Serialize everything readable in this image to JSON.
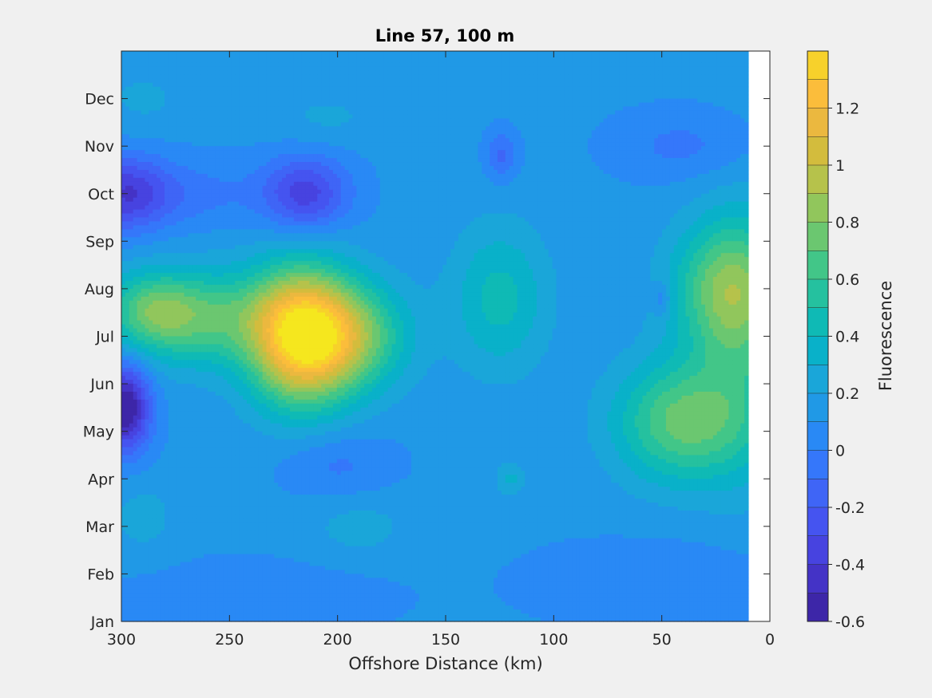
{
  "chart_data": {
    "type": "heatmap",
    "title": "Line 57, 100 m",
    "xlabel": "Offshore Distance (km)",
    "ylabel": "",
    "xlim": [
      300,
      0
    ],
    "x_reversed": true,
    "xticks": [
      300,
      250,
      200,
      150,
      100,
      50,
      0
    ],
    "ylim": [
      0,
      12
    ],
    "yticks": [
      {
        "value": 0,
        "label": "Jan"
      },
      {
        "value": 1,
        "label": "Feb"
      },
      {
        "value": 2,
        "label": "Mar"
      },
      {
        "value": 3,
        "label": "Apr"
      },
      {
        "value": 4,
        "label": "May"
      },
      {
        "value": 5,
        "label": "Jun"
      },
      {
        "value": 6,
        "label": "Jul"
      },
      {
        "value": 7,
        "label": "Aug"
      },
      {
        "value": 8,
        "label": "Sep"
      },
      {
        "value": 9,
        "label": "Oct"
      },
      {
        "value": 10,
        "label": "Nov"
      },
      {
        "value": 11,
        "label": "Dec"
      }
    ],
    "data_xmin": 10,
    "background_value": 0.12,
    "features": [
      {
        "x": 217,
        "y": 6.0,
        "sx": 17,
        "sy": 1.0,
        "amp": 1.25
      },
      {
        "x": 192,
        "y": 6.0,
        "sx": 18,
        "sy": 0.8,
        "amp": 0.55
      },
      {
        "x": 265,
        "y": 6.4,
        "sx": 24,
        "sy": 0.7,
        "amp": 0.55
      },
      {
        "x": 287,
        "y": 6.55,
        "sx": 14,
        "sy": 0.55,
        "amp": 0.35
      },
      {
        "x": 125,
        "y": 6.8,
        "sx": 16,
        "sy": 1.1,
        "amp": 0.32
      },
      {
        "x": 40,
        "y": 4.2,
        "sx": 22,
        "sy": 0.9,
        "amp": 0.62
      },
      {
        "x": 20,
        "y": 7.0,
        "sx": 18,
        "sy": 1.0,
        "amp": 0.6
      },
      {
        "x": 12,
        "y": 5.8,
        "sx": 14,
        "sy": 2.0,
        "amp": 0.25
      },
      {
        "x": 298,
        "y": 4.5,
        "sx": 8,
        "sy": 0.65,
        "amp": -0.75
      },
      {
        "x": 298,
        "y": 9.0,
        "sx": 14,
        "sy": 0.55,
        "amp": -0.5
      },
      {
        "x": 265,
        "y": 9.0,
        "sx": 20,
        "sy": 0.5,
        "amp": -0.15
      },
      {
        "x": 215,
        "y": 9.0,
        "sx": 14,
        "sy": 0.55,
        "amp": -0.48
      },
      {
        "x": 124,
        "y": 9.8,
        "sx": 5,
        "sy": 0.35,
        "amp": -0.25
      },
      {
        "x": 40,
        "y": 10.0,
        "sx": 22,
        "sy": 0.5,
        "amp": -0.15
      },
      {
        "x": 50,
        "y": 6.8,
        "sx": 3,
        "sy": 0.25,
        "amp": -0.2
      },
      {
        "x": 200,
        "y": 3.3,
        "sx": 18,
        "sy": 0.5,
        "amp": -0.15
      },
      {
        "x": 240,
        "y": 0.5,
        "sx": 40,
        "sy": 0.5,
        "amp": -0.12
      },
      {
        "x": 50,
        "y": 0.8,
        "sx": 40,
        "sy": 0.6,
        "amp": -0.12
      },
      {
        "x": 190,
        "y": 2.0,
        "sx": 18,
        "sy": 0.5,
        "amp": 0.12
      },
      {
        "x": 290,
        "y": 2.2,
        "sx": 12,
        "sy": 0.6,
        "amp": 0.12
      },
      {
        "x": 290,
        "y": 11.0,
        "sx": 15,
        "sy": 0.5,
        "amp": 0.1
      },
      {
        "x": 205,
        "y": 10.6,
        "sx": 18,
        "sy": 0.4,
        "amp": 0.1
      },
      {
        "x": 120,
        "y": 3.0,
        "sx": 5,
        "sy": 0.25,
        "amp": 0.2
      }
    ],
    "colorbar": {
      "label": "Fluorescence",
      "min": -0.6,
      "max": 1.4,
      "levels": [
        -0.6,
        -0.5,
        -0.4,
        -0.3,
        -0.2,
        -0.1,
        0,
        0.1,
        0.2,
        0.3,
        0.4,
        0.5,
        0.6,
        0.7,
        0.8,
        0.9,
        1.0,
        1.1,
        1.2,
        1.3,
        1.4
      ],
      "colors": [
        "#3d26a8",
        "#4433c6",
        "#4743e0",
        "#4554f0",
        "#3f65f6",
        "#3577fa",
        "#2989f5",
        "#2099e6",
        "#1aa6d9",
        "#09b1c9",
        "#0fbab5",
        "#25c19f",
        "#42c688",
        "#6bc770",
        "#91c65c",
        "#b6c24b",
        "#d3bc3d",
        "#ebb83f",
        "#fbbd3b",
        "#f7d12b",
        "#f5e71e"
      ],
      "ticks": [
        -0.6,
        -0.4,
        -0.2,
        0,
        0.2,
        0.4,
        0.6,
        0.8,
        1,
        1.2
      ],
      "tick_labels": [
        "-0.6",
        "-0.4",
        "-0.2",
        "0",
        "0.2",
        "0.4",
        "0.6",
        "0.8",
        "1",
        "1.2"
      ]
    }
  }
}
